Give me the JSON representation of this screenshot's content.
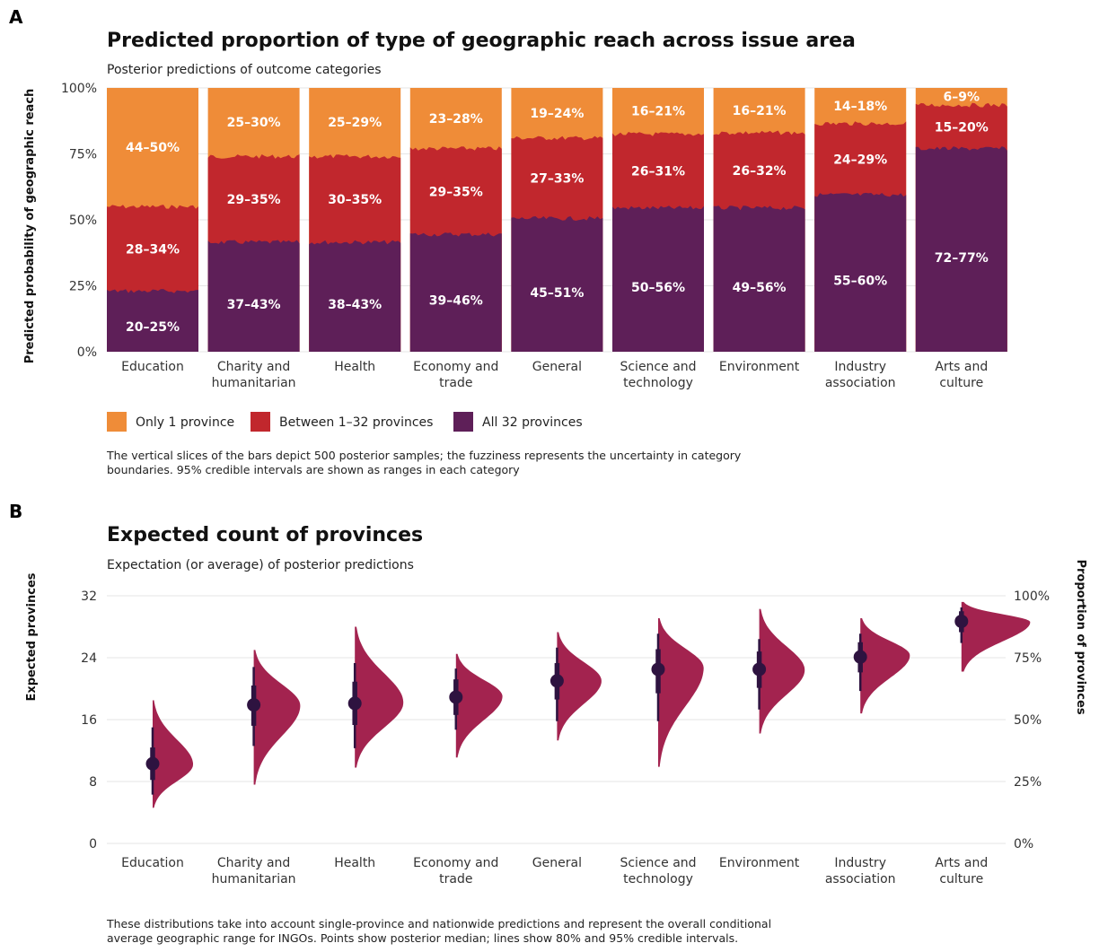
{
  "panel_a": {
    "panel_label": "A",
    "title": "Predicted proportion of type of geographic reach across issue area",
    "subtitle": "Posterior predictions of outcome categories",
    "caption_lines": [
      "The vertical slices of the bars depict 500 posterior samples; the fuzziness represents the uncertainty in category",
      "boundaries. 95% credible intervals are shown as ranges in each category"
    ]
  },
  "panel_b": {
    "panel_label": "B",
    "title": "Expected count of provinces",
    "subtitle": "Expectation (or average) of posterior predictions",
    "caption_lines": [
      "These distributions take into account single-province and nationwide predictions and represent the overall conditional",
      "average geographic range for INGOs. Points show posterior median; lines show 80% and 95% credible intervals."
    ]
  },
  "colors": {
    "only_one": "#EF8C38",
    "between": "#C1272D",
    "all_32": "#5E1F58",
    "density": "#A3234F",
    "point": "#2E1340",
    "grid": "#E6E6E6"
  },
  "chart_data": [
    {
      "type": "bar",
      "stacked": true,
      "title": "Predicted proportion of type of geographic reach across issue area",
      "subtitle": "Posterior predictions of outcome categories",
      "ylabel": "Predicted probability of geographic reach",
      "xlabel": "",
      "ylim": [
        0,
        1
      ],
      "yticks": [
        "0%",
        "25%",
        "50%",
        "75%",
        "100%"
      ],
      "categories": [
        [
          "Education"
        ],
        [
          "Charity and",
          "humanitarian"
        ],
        [
          "Health"
        ],
        [
          "Economy and",
          "trade"
        ],
        [
          "General"
        ],
        [
          "Science and",
          "technology"
        ],
        [
          "Environment"
        ],
        [
          "Industry",
          "association"
        ],
        [
          "Arts and",
          "culture"
        ]
      ],
      "series": [
        {
          "name": "All 32 provinces",
          "values": [
            0.23,
            0.415,
            0.415,
            0.445,
            0.505,
            0.545,
            0.545,
            0.595,
            0.77
          ],
          "labels": [
            "20–25%",
            "37–43%",
            "38–43%",
            "39–46%",
            "45–51%",
            "50–56%",
            "49–56%",
            "55–60%",
            "72–77%"
          ]
        },
        {
          "name": "Between 1–32 provinces",
          "values": [
            0.32,
            0.325,
            0.325,
            0.325,
            0.305,
            0.28,
            0.285,
            0.27,
            0.165
          ],
          "labels": [
            "28–34%",
            "29–35%",
            "30–35%",
            "29–35%",
            "27–33%",
            "26–31%",
            "26–32%",
            "24–29%",
            "15–20%"
          ]
        },
        {
          "name": "Only 1 province",
          "values": [
            0.45,
            0.26,
            0.26,
            0.23,
            0.19,
            0.175,
            0.17,
            0.135,
            0.065
          ],
          "labels": [
            "44–50%",
            "25–30%",
            "25–29%",
            "23–28%",
            "19–24%",
            "16–21%",
            "16–21%",
            "14–18%",
            "6–9%"
          ]
        }
      ],
      "legend": {
        "placement": "bottom-left"
      }
    },
    {
      "type": "scatter",
      "subtype": "half-eye (density with interval)",
      "title": "Expected count of provinces",
      "subtitle": "Expectation (or average) of posterior predictions",
      "ylabel": "Expected provinces",
      "ylabel_right": "Proportion of provinces",
      "ylim": [
        0,
        32
      ],
      "yticks": [
        "0",
        "8",
        "16",
        "24",
        "32"
      ],
      "yticks_right": [
        "0%",
        "25%",
        "50%",
        "75%",
        "100%"
      ],
      "grid": true,
      "categories": [
        [
          "Education"
        ],
        [
          "Charity and",
          "humanitarian"
        ],
        [
          "Health"
        ],
        [
          "Economy and",
          "trade"
        ],
        [
          "General"
        ],
        [
          "Science and",
          "technology"
        ],
        [
          "Environment"
        ],
        [
          "Industry",
          "association"
        ],
        [
          "Arts and",
          "culture"
        ]
      ],
      "median": [
        10.3,
        17.9,
        18.1,
        18.9,
        21.0,
        22.5,
        22.5,
        24.1,
        28.7
      ],
      "interval_80": [
        [
          8.2,
          12.4
        ],
        [
          15.2,
          20.4
        ],
        [
          15.3,
          20.9
        ],
        [
          16.6,
          21.2
        ],
        [
          18.6,
          23.3
        ],
        [
          19.4,
          25.1
        ],
        [
          20.1,
          24.8
        ],
        [
          22.1,
          26.0
        ],
        [
          27.3,
          30.0
        ]
      ],
      "interval_95": [
        [
          6.3,
          15.0
        ],
        [
          12.6,
          22.8
        ],
        [
          12.3,
          23.3
        ],
        [
          14.7,
          22.6
        ],
        [
          15.8,
          25.3
        ],
        [
          15.8,
          27.1
        ],
        [
          17.3,
          26.4
        ],
        [
          19.7,
          27.1
        ],
        [
          25.9,
          30.5
        ]
      ],
      "density_range": [
        [
          4.6,
          18.5
        ],
        [
          7.6,
          25.0
        ],
        [
          9.8,
          28.0
        ],
        [
          11.1,
          24.5
        ],
        [
          13.3,
          27.3
        ],
        [
          9.9,
          29.1
        ],
        [
          14.2,
          30.3
        ],
        [
          16.8,
          29.1
        ],
        [
          22.2,
          31.2
        ]
      ],
      "density_mode": [
        10.2,
        17.8,
        18.2,
        19.0,
        21.0,
        22.7,
        22.4,
        24.3,
        28.6
      ],
      "density_peak_width": [
        0.4,
        0.46,
        0.48,
        0.46,
        0.44,
        0.45,
        0.45,
        0.49,
        0.68
      ]
    }
  ]
}
